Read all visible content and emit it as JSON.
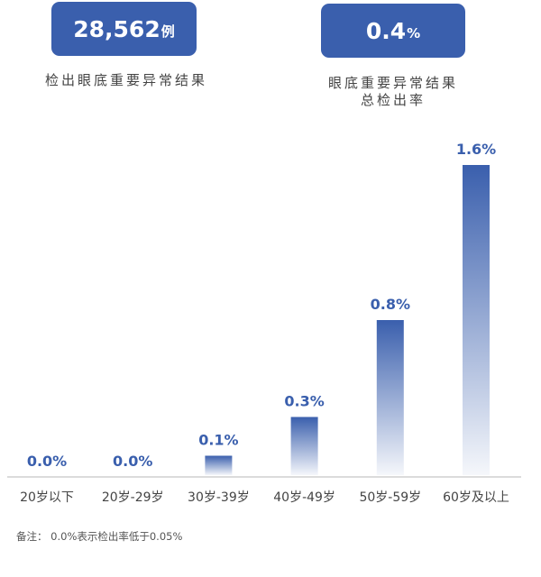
{
  "summary": [
    {
      "value": "28,562",
      "unit": "例",
      "caption": [
        "检出眼底重要异常结果"
      ]
    },
    {
      "value": "0.4",
      "unit": "%",
      "caption": [
        "眼底重要异常结果",
        "总检出率"
      ]
    }
  ],
  "colors": {
    "accent": "#3a5fad",
    "label": "#3a5fad",
    "axis": "#cfcfcf"
  },
  "chart_data": {
    "type": "bar",
    "categories": [
      "20岁以下",
      "20岁-29岁",
      "30岁-39岁",
      "40岁-49岁",
      "50岁-59岁",
      "60岁及以上"
    ],
    "values": [
      0.0,
      0.0,
      0.1,
      0.3,
      0.8,
      1.6
    ],
    "data_labels": [
      "0.0%",
      "0.0%",
      "0.1%",
      "0.3%",
      "0.8%",
      "1.6%"
    ],
    "ylim": [
      0,
      1.6
    ],
    "grid": false,
    "fill": "vertical gradient, blue to white"
  },
  "note": "备注：  0.0%表示检出率低于0.05%"
}
